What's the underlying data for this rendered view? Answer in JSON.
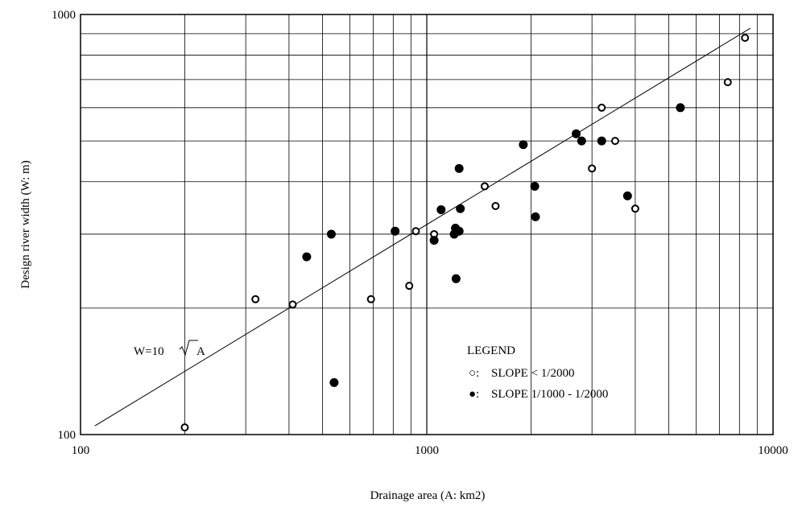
{
  "chart_data": {
    "type": "scatter",
    "xlabel": "Drainage area (A: km2)",
    "ylabel": "Design river width (W: m)",
    "x_scale": "log",
    "y_scale": "log",
    "xlim": [
      100,
      10000
    ],
    "ylim": [
      100,
      1000
    ],
    "x_tick_labels": [
      "100",
      "1000",
      "10000"
    ],
    "y_tick_labels": [
      "100",
      "1000"
    ],
    "grid": true,
    "legend": {
      "placement": "bottom-right",
      "title": "LEGEND",
      "open_label": "SLOPE < 1/2000",
      "open_marker": "○:",
      "filled_label": "SLOPE 1/1000 - 1/2000",
      "filled_marker": "●:"
    },
    "series": [
      {
        "name": "SLOPE < 1/2000",
        "marker": "open-circle",
        "points": [
          [
            200,
            104
          ],
          [
            320,
            210
          ],
          [
            410,
            204
          ],
          [
            690,
            210
          ],
          [
            890,
            226
          ],
          [
            930,
            305
          ],
          [
            1050,
            300
          ],
          [
            1470,
            390
          ],
          [
            1580,
            350
          ],
          [
            3000,
            430
          ],
          [
            3200,
            600
          ],
          [
            3500,
            500
          ],
          [
            4000,
            345
          ],
          [
            7400,
            690
          ],
          [
            8300,
            880
          ]
        ]
      },
      {
        "name": "SLOPE 1/1000 - 1/2000",
        "marker": "filled-circle",
        "points": [
          [
            450,
            265
          ],
          [
            530,
            300
          ],
          [
            540,
            133
          ],
          [
            810,
            305
          ],
          [
            1050,
            290
          ],
          [
            1100,
            343
          ],
          [
            1200,
            300
          ],
          [
            1210,
            310
          ],
          [
            1215,
            235
          ],
          [
            1240,
            305
          ],
          [
            1240,
            430
          ],
          [
            1250,
            345
          ],
          [
            1900,
            490
          ],
          [
            2050,
            390
          ],
          [
            2060,
            330
          ],
          [
            2700,
            520
          ],
          [
            2800,
            500
          ],
          [
            3200,
            500
          ],
          [
            3800,
            370
          ],
          [
            5400,
            600
          ]
        ]
      }
    ],
    "reference_line": {
      "label_prefix": "W=10",
      "label_radicand": "A",
      "equation": "W=10√A"
    }
  }
}
